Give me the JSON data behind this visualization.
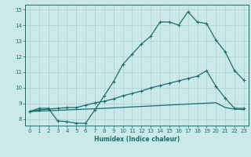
{
  "xlabel": "Humidex (Indice chaleur)",
  "bg_color": "#cce9e9",
  "grid_color": "#afd4d4",
  "line_color": "#1a6e6e",
  "xlim": [
    -0.5,
    23.5
  ],
  "ylim": [
    7.6,
    15.3
  ],
  "xticks": [
    0,
    1,
    2,
    3,
    4,
    5,
    6,
    7,
    8,
    9,
    10,
    11,
    12,
    13,
    14,
    15,
    16,
    17,
    18,
    19,
    20,
    21,
    22,
    23
  ],
  "yticks": [
    8,
    9,
    10,
    11,
    12,
    13,
    14,
    15
  ],
  "line1_x": [
    0,
    1,
    2,
    3,
    4,
    5,
    6,
    7,
    8,
    9,
    10,
    11,
    12,
    13,
    14,
    15,
    16,
    17,
    18,
    19,
    20,
    21,
    22,
    23
  ],
  "line1_y": [
    8.5,
    8.7,
    8.7,
    7.9,
    7.85,
    7.75,
    7.75,
    8.6,
    9.5,
    10.4,
    11.5,
    12.15,
    12.8,
    13.3,
    14.2,
    14.2,
    14.0,
    14.85,
    14.2,
    14.1,
    13.05,
    12.3,
    11.1,
    10.5
  ],
  "line2_x": [
    0,
    1,
    2,
    3,
    4,
    5,
    6,
    7,
    8,
    9,
    10,
    11,
    12,
    13,
    14,
    15,
    16,
    17,
    18,
    19,
    20,
    21,
    22,
    23
  ],
  "line2_y": [
    8.5,
    8.6,
    8.65,
    8.7,
    8.75,
    8.75,
    8.9,
    9.05,
    9.15,
    9.3,
    9.5,
    9.65,
    9.8,
    10.0,
    10.15,
    10.3,
    10.45,
    10.6,
    10.75,
    11.1,
    10.1,
    9.35,
    8.7,
    8.7
  ],
  "line3_x": [
    0,
    1,
    2,
    3,
    4,
    5,
    6,
    7,
    8,
    9,
    10,
    11,
    12,
    13,
    14,
    15,
    16,
    17,
    18,
    19,
    20,
    21,
    22,
    23
  ],
  "line3_y": [
    8.5,
    8.52,
    8.55,
    8.57,
    8.6,
    8.62,
    8.65,
    8.67,
    8.7,
    8.73,
    8.76,
    8.79,
    8.82,
    8.85,
    8.88,
    8.91,
    8.94,
    8.97,
    9.0,
    9.03,
    9.06,
    8.75,
    8.65,
    8.62
  ]
}
